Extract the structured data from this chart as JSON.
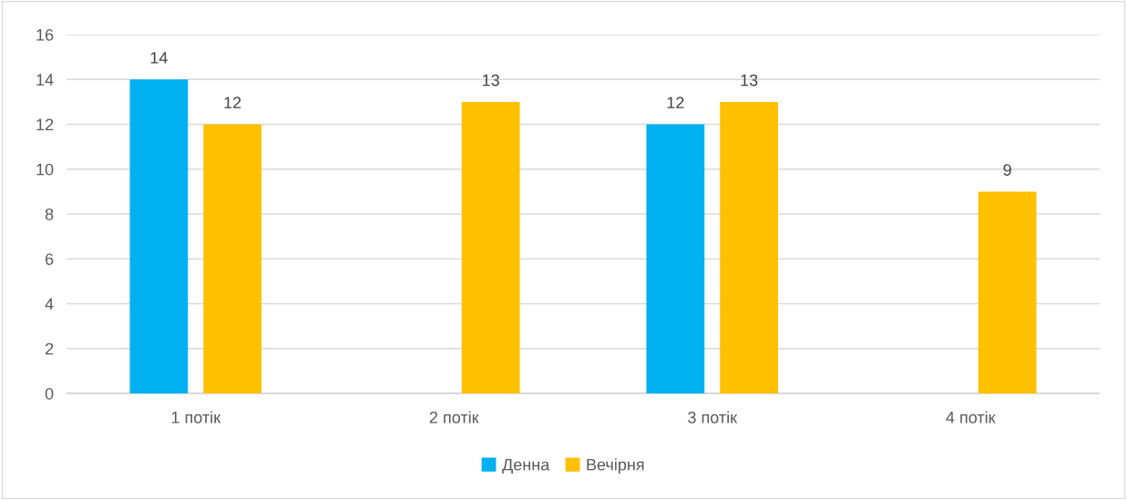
{
  "chart_data": {
    "type": "bar",
    "categories": [
      "1 потік",
      "2 потік",
      "3 потік",
      "4 потік"
    ],
    "series": [
      {
        "name": "Денна",
        "color": "#00b0f0",
        "values": [
          14,
          null,
          12,
          null
        ]
      },
      {
        "name": "Вечірня",
        "color": "#ffc000",
        "values": [
          12,
          13,
          13,
          9
        ]
      }
    ],
    "ylim": [
      0,
      16
    ],
    "yticks": [
      0,
      2,
      4,
      6,
      8,
      10,
      12,
      14,
      16
    ],
    "grid": "y",
    "legend": "bottom",
    "data_labels": true
  }
}
